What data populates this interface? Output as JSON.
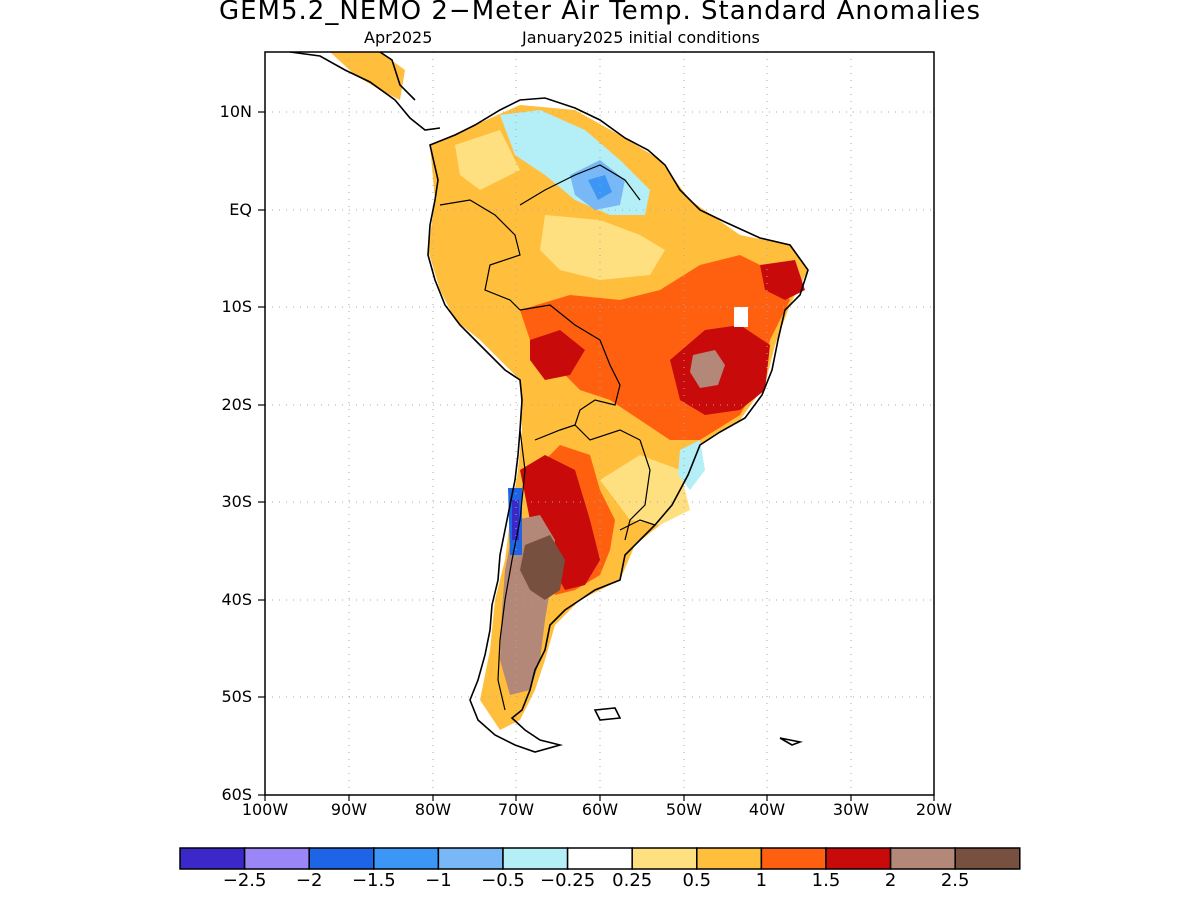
{
  "title": "GEM5.2_NEMO 2−Meter Air Temp. Standard Anomalies",
  "subtitle_left": "Apr2025",
  "subtitle_right": "January2025 initial conditions",
  "map": {
    "lat_labels": [
      "10N",
      "EQ",
      "10S",
      "20S",
      "30S",
      "40S",
      "50S",
      "60S"
    ],
    "lon_labels": [
      "100W",
      "90W",
      "80W",
      "70W",
      "60W",
      "50W",
      "40W",
      "30W",
      "20W"
    ],
    "gridlines": "dotted"
  },
  "colorbar": {
    "colors": [
      "#3a28c8",
      "#9a86f6",
      "#1e64e6",
      "#3c96f5",
      "#78b8f6",
      "#b4eef6",
      "#ffffff",
      "#ffe080",
      "#ffbe3c",
      "#ff6010",
      "#c80a0a",
      "#b48878",
      "#785040"
    ],
    "labels": [
      "−2.5",
      "−2",
      "−1.5",
      "−1",
      "−0.5",
      "−0.25",
      "0.25",
      "0.5",
      "1",
      "1.5",
      "2",
      "2.5"
    ]
  },
  "palette": {
    "land_outline": "#000000",
    "frame": "#000000",
    "grid": "#aaaaaa"
  }
}
